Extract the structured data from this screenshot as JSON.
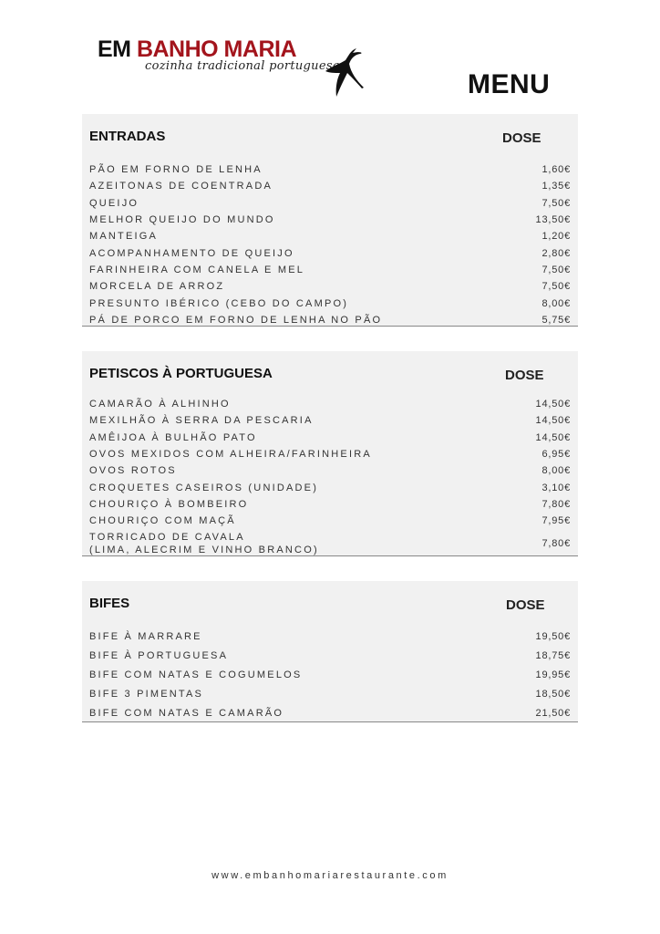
{
  "logo": {
    "name_part1": "EM",
    "name_part2": "BANHO MARIA",
    "tagline": "cozinha tradicional portuguesa",
    "icon": "swallow-bird-icon",
    "brand_color": "#a3141c"
  },
  "title": "MENU",
  "sections": [
    {
      "title": "ENTRADAS",
      "dose_label": "DOSE",
      "items": [
        {
          "name": "PÃO EM FORNO DE LENHA",
          "price": "1,60€"
        },
        {
          "name": "AZEITONAS DE COENTRADA",
          "price": "1,35€"
        },
        {
          "name": "QUEIJO",
          "price": "7,50€"
        },
        {
          "name": "MELHOR QUEIJO DO MUNDO",
          "price": "13,50€"
        },
        {
          "name": "MANTEIGA",
          "price": "1,20€"
        },
        {
          "name": "ACOMPANHAMENTO DE QUEIJO",
          "price": "2,80€"
        },
        {
          "name": "FARINHEIRA COM CANELA E MEL",
          "price": "7,50€"
        },
        {
          "name": "MORCELA DE ARROZ",
          "price": "7,50€"
        },
        {
          "name": "PRESUNTO IBÉRICO (CEBO DO CAMPO)",
          "price": "8,00€"
        },
        {
          "name": "PÁ DE PORCO EM FORNO DE LENHA NO PÃO",
          "price": "5,75€"
        }
      ]
    },
    {
      "title": "PETISCOS À PORTUGUESA",
      "dose_label": "DOSE",
      "items": [
        {
          "name": "CAMARÃO À ALHINHO",
          "price": "14,50€"
        },
        {
          "name": "MEXILHÃO À SERRA DA PESCARIA",
          "price": "14,50€"
        },
        {
          "name": "AMÊIJOA À BULHÃO PATO",
          "price": "14,50€"
        },
        {
          "name": "OVOS MEXIDOS COM ALHEIRA/FARINHEIRA",
          "price": "6,95€"
        },
        {
          "name": "OVOS ROTOS",
          "price": "8,00€"
        },
        {
          "name": "CROQUETES CASEIROS (UNIDADE)",
          "price": "3,10€"
        },
        {
          "name": "CHOURIÇO À BOMBEIRO",
          "price": "7,80€"
        },
        {
          "name": "CHOURIÇO COM MAÇÃ",
          "price": "7,95€"
        },
        {
          "name": "TORRICADO DE CAVALA\n(LIMA, ALECRIM E VINHO BRANCO)",
          "price": "7,80€"
        }
      ]
    },
    {
      "title": "BIFES",
      "dose_label": "DOSE",
      "items": [
        {
          "name": "BIFE À MARRARE",
          "price": "19,50€"
        },
        {
          "name": "BIFE À PORTUGUESA",
          "price": "18,75€"
        },
        {
          "name": "BIFE COM NATAS E COGUMELOS",
          "price": "19,95€"
        },
        {
          "name": "BIFE 3 PIMENTAS",
          "price": "18,50€"
        },
        {
          "name": "BIFE COM NATAS E CAMARÃO",
          "price": "21,50€"
        }
      ]
    }
  ],
  "footer": "www.embanhomariarestaurante.com"
}
